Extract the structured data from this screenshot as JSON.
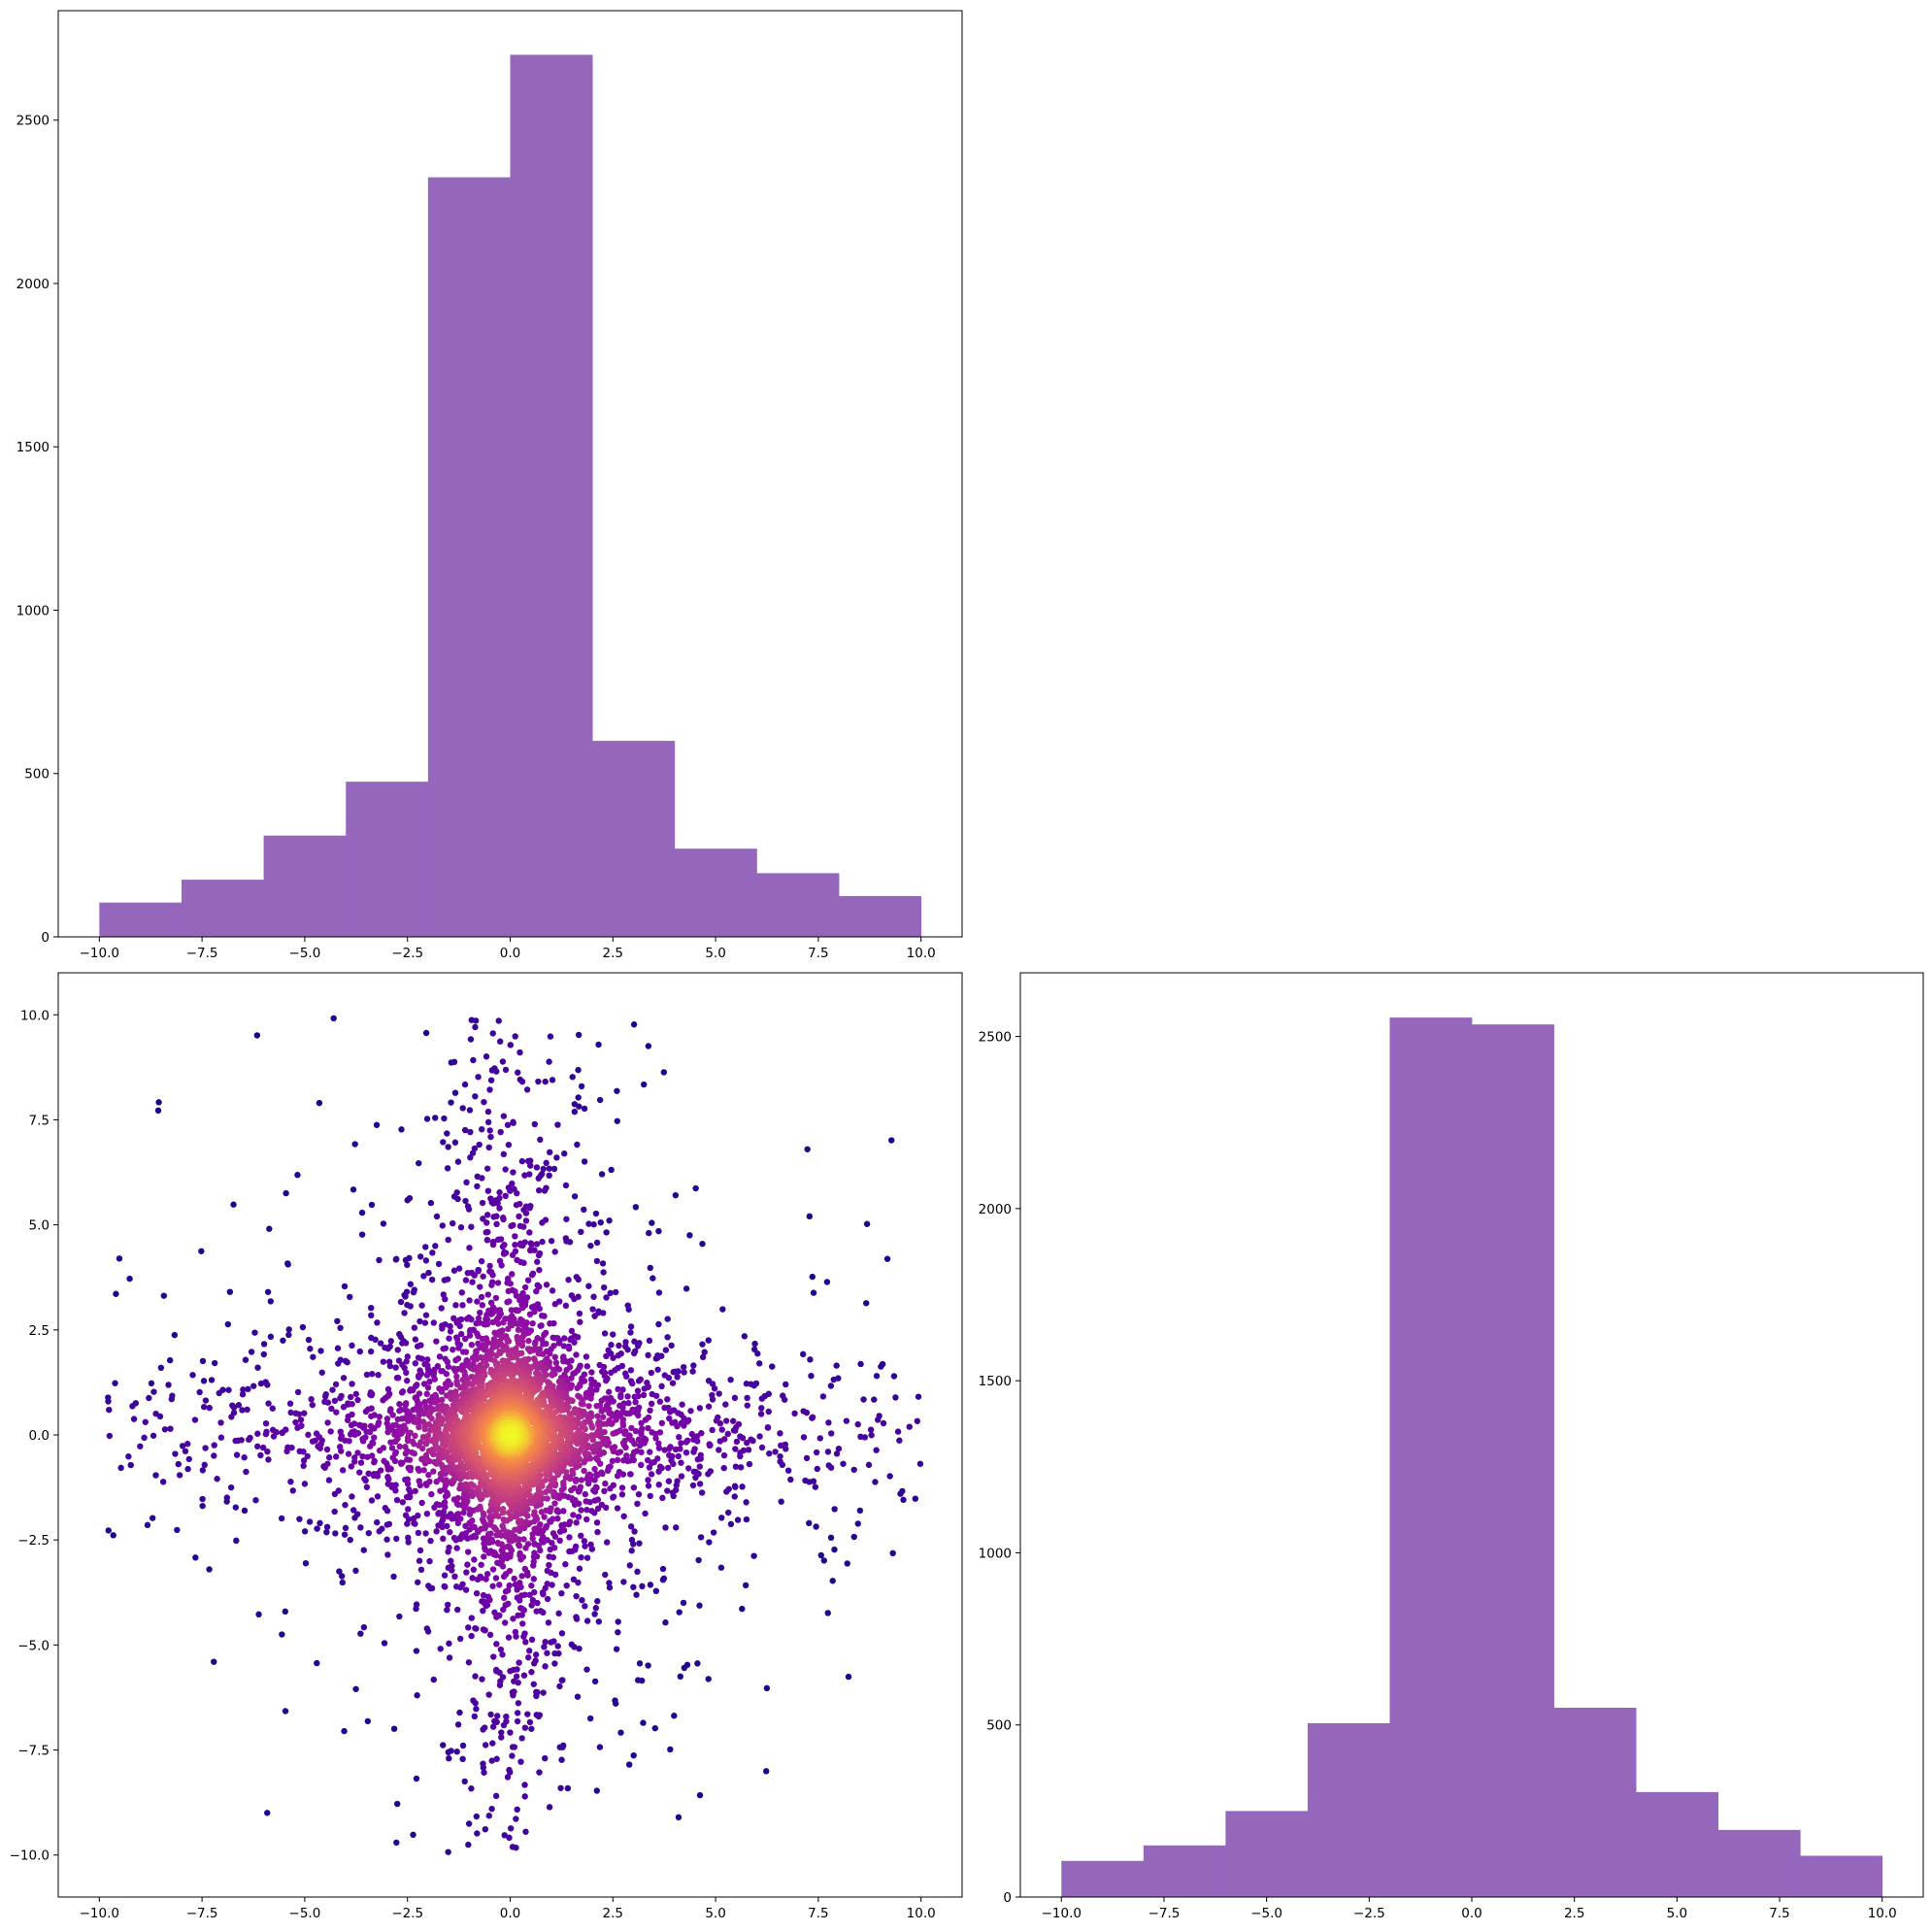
{
  "chart_data": [
    {
      "id": "top_left",
      "type": "bar",
      "bin_edges": [
        -10,
        -8,
        -6,
        -4,
        -2,
        0,
        2,
        4,
        6,
        8,
        10
      ],
      "values": [
        105,
        175,
        310,
        475,
        2325,
        2700,
        600,
        270,
        195,
        125
      ],
      "xlim": [
        -11,
        11
      ],
      "ylim": [
        0,
        2835
      ],
      "xticks": [
        -10,
        -7.5,
        -5,
        -2.5,
        0,
        2.5,
        5,
        7.5,
        10
      ],
      "xtick_labels": [
        "−10.0",
        "−7.5",
        "−5.0",
        "−2.5",
        "0.0",
        "2.5",
        "5.0",
        "7.5",
        "10.0"
      ],
      "yticks": [
        0,
        500,
        1000,
        1500,
        2000,
        2500
      ],
      "ytick_labels": [
        "0",
        "500",
        "1000",
        "1500",
        "2000",
        "2500"
      ],
      "color": "#9467bd"
    },
    {
      "id": "bottom_left",
      "type": "scatter",
      "description_of_points": "about 5000 points spread over [-10,10]x[-10,10], dense Cauchy-like core around (0,0), colored by density",
      "n_points": 5000,
      "xlim": [
        -11,
        11
      ],
      "ylim": [
        -11,
        11
      ],
      "xticks": [
        -10,
        -7.5,
        -5,
        -2.5,
        0,
        2.5,
        5,
        7.5,
        10
      ],
      "xtick_labels": [
        "−10.0",
        "−7.5",
        "−5.0",
        "−2.5",
        "0.0",
        "2.5",
        "5.0",
        "7.5",
        "10.0"
      ],
      "yticks": [
        -10,
        -7.5,
        -5,
        -2.5,
        0,
        2.5,
        5,
        7.5,
        10
      ],
      "ytick_labels": [
        "−10.0",
        "−7.5",
        "−5.0",
        "−2.5",
        "0.0",
        "2.5",
        "5.0",
        "7.5",
        "10.0"
      ],
      "colormap": "plasma"
    },
    {
      "id": "bottom_right",
      "type": "bar",
      "bin_edges": [
        -10,
        -8,
        -6,
        -4,
        -2,
        0,
        2,
        4,
        6,
        8,
        10
      ],
      "values": [
        105,
        150,
        250,
        505,
        2555,
        2535,
        550,
        305,
        195,
        120
      ],
      "xlim": [
        -11,
        11
      ],
      "ylim": [
        0,
        2685
      ],
      "xticks": [
        -10,
        -7.5,
        -5,
        -2.5,
        0,
        2.5,
        5,
        7.5,
        10
      ],
      "xtick_labels": [
        "−10.0",
        "−7.5",
        "−5.0",
        "−2.5",
        "0.0",
        "2.5",
        "5.0",
        "7.5",
        "10.0"
      ],
      "yticks": [
        0,
        500,
        1000,
        1500,
        2000,
        2500
      ],
      "ytick_labels": [
        "0",
        "500",
        "1000",
        "1500",
        "2000",
        "2500"
      ],
      "color": "#9467bd"
    }
  ]
}
